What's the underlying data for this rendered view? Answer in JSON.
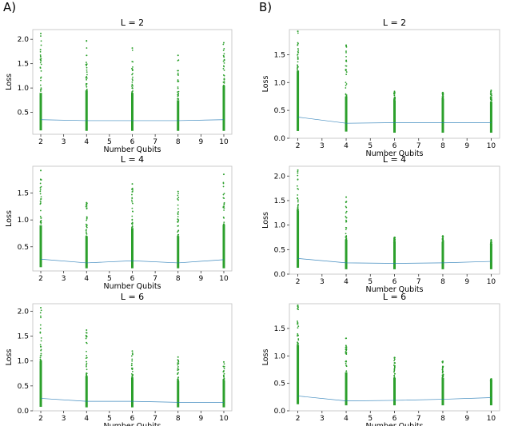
{
  "panel_labels": [
    "A)",
    "B)"
  ],
  "chart_data": [
    {
      "type": "scatter",
      "title": "L = 2",
      "xlabel": "Number Qubits",
      "ylabel": "Loss",
      "xlim": [
        1.65,
        10.35
      ],
      "ylim": [
        0.05,
        2.2
      ],
      "xticks": [
        2,
        3,
        4,
        5,
        6,
        7,
        8,
        9,
        10
      ],
      "yticks": [
        0.5,
        1.0,
        1.5,
        2.0
      ],
      "x": [
        2,
        4,
        6,
        8,
        10
      ],
      "points_min": [
        0.13,
        0.12,
        0.12,
        0.12,
        0.12
      ],
      "points_max": [
        2.12,
        1.97,
        1.82,
        1.67,
        1.93
      ],
      "points_dense_top": [
        0.9,
        0.95,
        0.9,
        0.75,
        1.05
      ],
      "mean_line": [
        0.35,
        0.33,
        0.33,
        0.33,
        0.35
      ]
    },
    {
      "type": "scatter",
      "title": "L = 2",
      "xlabel": "Number Qubits",
      "ylabel": "Loss",
      "xlim": [
        1.65,
        10.35
      ],
      "ylim": [
        0.0,
        1.95
      ],
      "xticks": [
        2,
        3,
        4,
        5,
        6,
        7,
        8,
        9,
        10
      ],
      "yticks": [
        0.0,
        0.5,
        1.0,
        1.5
      ],
      "x": [
        2,
        4,
        6,
        8,
        10
      ],
      "points_min": [
        0.13,
        0.12,
        0.1,
        0.1,
        0.1
      ],
      "points_max": [
        1.92,
        1.67,
        0.84,
        0.82,
        0.86
      ],
      "points_dense_top": [
        1.2,
        0.75,
        0.68,
        0.7,
        0.65
      ],
      "mean_line": [
        0.38,
        0.27,
        0.28,
        0.28,
        0.28
      ]
    },
    {
      "type": "scatter",
      "title": "L = 4",
      "xlabel": "Number Qubits",
      "ylabel": "Loss",
      "xlim": [
        1.65,
        10.35
      ],
      "ylim": [
        0.05,
        2.0
      ],
      "xticks": [
        2,
        3,
        4,
        5,
        6,
        7,
        8,
        9,
        10
      ],
      "yticks": [
        0.5,
        1.0,
        1.5
      ],
      "x": [
        2,
        4,
        6,
        8,
        10
      ],
      "points_min": [
        0.12,
        0.1,
        0.1,
        0.1,
        0.1
      ],
      "points_max": [
        1.92,
        1.32,
        1.67,
        1.53,
        1.85
      ],
      "points_dense_top": [
        0.9,
        0.7,
        0.85,
        0.7,
        0.9
      ],
      "mean_line": [
        0.27,
        0.2,
        0.24,
        0.2,
        0.26
      ]
    },
    {
      "type": "scatter",
      "title": "L = 4",
      "xlabel": "Number Qubits",
      "ylabel": "Loss",
      "xlim": [
        1.65,
        10.35
      ],
      "ylim": [
        0.0,
        2.2
      ],
      "xticks": [
        2,
        3,
        4,
        5,
        6,
        7,
        8,
        9,
        10
      ],
      "yticks": [
        0.0,
        0.5,
        1.0,
        1.5,
        2.0
      ],
      "x": [
        2,
        4,
        6,
        8,
        10
      ],
      "points_min": [
        0.13,
        0.1,
        0.1,
        0.1,
        0.1
      ],
      "points_max": [
        2.12,
        1.57,
        0.75,
        0.78,
        0.7
      ],
      "points_dense_top": [
        1.3,
        0.7,
        0.65,
        0.65,
        0.6
      ],
      "mean_line": [
        0.32,
        0.23,
        0.22,
        0.23,
        0.26
      ]
    },
    {
      "type": "scatter",
      "title": "L = 6",
      "xlabel": "Number Qubits",
      "ylabel": "Loss",
      "xlim": [
        1.65,
        10.35
      ],
      "ylim": [
        0.0,
        2.15
      ],
      "xticks": [
        2,
        3,
        4,
        5,
        6,
        7,
        8,
        9,
        10
      ],
      "yticks": [
        0.0,
        0.5,
        1.0,
        1.5,
        2.0
      ],
      "x": [
        2,
        4,
        6,
        8,
        10
      ],
      "points_min": [
        0.08,
        0.07,
        0.07,
        0.07,
        0.07
      ],
      "points_max": [
        2.07,
        1.62,
        1.2,
        1.08,
        0.98
      ],
      "points_dense_top": [
        1.0,
        0.7,
        0.65,
        0.6,
        0.6
      ],
      "mean_line": [
        0.25,
        0.19,
        0.19,
        0.17,
        0.17
      ]
    },
    {
      "type": "scatter",
      "title": "L = 6",
      "xlabel": "Number Qubits",
      "ylabel": "Loss",
      "xlim": [
        1.65,
        10.35
      ],
      "ylim": [
        0.0,
        1.95
      ],
      "xticks": [
        2,
        3,
        4,
        5,
        6,
        7,
        8,
        9,
        10
      ],
      "yticks": [
        0.0,
        0.5,
        1.0,
        1.5
      ],
      "x": [
        2,
        4,
        6,
        8,
        10
      ],
      "points_min": [
        0.12,
        0.1,
        0.1,
        0.1,
        0.1
      ],
      "points_max": [
        1.92,
        1.32,
        0.97,
        0.9,
        0.58
      ],
      "points_dense_top": [
        1.2,
        0.7,
        0.6,
        0.6,
        0.55
      ],
      "mean_line": [
        0.27,
        0.18,
        0.19,
        0.21,
        0.24
      ]
    }
  ]
}
